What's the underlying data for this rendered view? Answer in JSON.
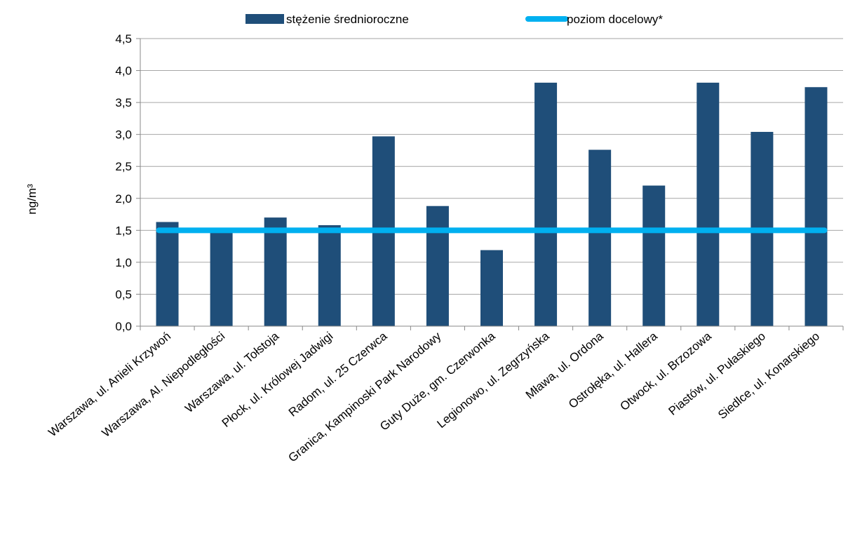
{
  "chart_data": {
    "type": "bar",
    "title": "",
    "xlabel": "",
    "ylabel": "ng/m³",
    "ylim": [
      0,
      4.5
    ],
    "yticks": [
      "0,0",
      "0,5",
      "1,0",
      "1,5",
      "2,0",
      "2,5",
      "3,0",
      "3,5",
      "4,0",
      "4,5"
    ],
    "ytick_values": [
      0,
      0.5,
      1.0,
      1.5,
      2.0,
      2.5,
      3.0,
      3.5,
      4.0,
      4.5
    ],
    "grid": true,
    "legend_position": "top",
    "categories": [
      "Warszawa, ul. Anieli Krzywoń",
      "Warszawa, Al. Niepodległości",
      "Warszawa, ul. Tołstoja",
      "Płock, ul. Królowej Jadwigi",
      "Radom, ul. 25 Czerwca",
      "Granica, Kampinoski Park Narodowy",
      "Guty Duże, gm. Czerwonka",
      "Legionowo, ul. Zegrzyńska",
      "Mława, ul. Ordona",
      "Ostrołęka, ul. Hallera",
      "Otwock, ul. Brzozowa",
      "Piastów, ul. Pułaskiego",
      "Siedlce, ul. Konarskiego"
    ],
    "series": [
      {
        "name": "stężenie średnioroczne",
        "type": "bar",
        "color": "#1f4e79",
        "values": [
          1.63,
          1.5,
          1.7,
          1.58,
          2.97,
          1.88,
          1.19,
          3.81,
          2.76,
          2.2,
          3.81,
          3.04,
          3.74
        ]
      },
      {
        "name": "poziom docelowy*",
        "type": "line",
        "color": "#00b0f0",
        "values": [
          1.5,
          1.5,
          1.5,
          1.5,
          1.5,
          1.5,
          1.5,
          1.5,
          1.5,
          1.5,
          1.5,
          1.5,
          1.5
        ]
      }
    ]
  }
}
